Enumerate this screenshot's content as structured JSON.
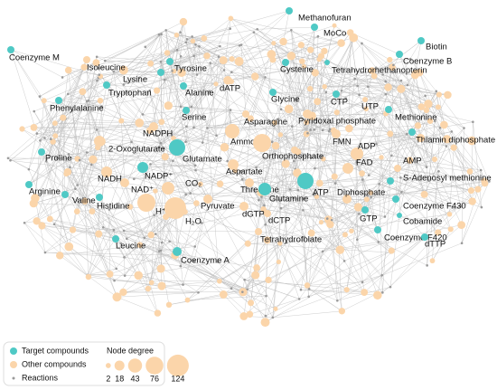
{
  "nodes": [
    "Methanofuran",
    "MoCo",
    "Biotin",
    "Coenzyme M",
    "Coenzyme B",
    "Isoleucine",
    "Lysine",
    "Tyrosine",
    "Cysteine",
    "Tetrahydromethanopterin",
    "Tryptophan",
    "Alanine",
    "dATP",
    "Glycine",
    "CTP",
    "UTP",
    "Phenylalanine",
    "NADPH",
    "Serine",
    "Asparagine",
    "Pyridoxal phosphate",
    "Methionine",
    "Thiamin diphosphate",
    "2-Oxoglutarate",
    "Ammonia",
    "FMN",
    "ADP",
    "Glutamate",
    "Orthophosphate",
    "FAD",
    "AMP",
    "S-Adenosyl methionine",
    "Proline",
    "NADH",
    "NADP⁺",
    "CO₂",
    "Aspartate",
    "NAD⁺",
    "Threonine",
    "ATP",
    "Diphosphate",
    "Coenzyme F430",
    "Arginine",
    "Valine",
    "Histidine",
    "Glutamine",
    "Cobamide",
    "H⁺",
    "Pyruvate",
    "dGTP",
    "H₂O",
    "dCTP",
    "GTP",
    "Coenzyme F420",
    "Tetrahydrofolate",
    "Leucine",
    "dTTP",
    "Coenzyme A"
  ],
  "legend": {
    "items": [
      "Target compounds",
      "Other compounds",
      "Reactions"
    ],
    "colors": [
      "#4fc9c5",
      "#fbd5aa",
      "#9a9a9a"
    ],
    "size_title": "Node degree",
    "sizes": [
      2,
      18,
      43,
      76,
      124
    ]
  }
}
